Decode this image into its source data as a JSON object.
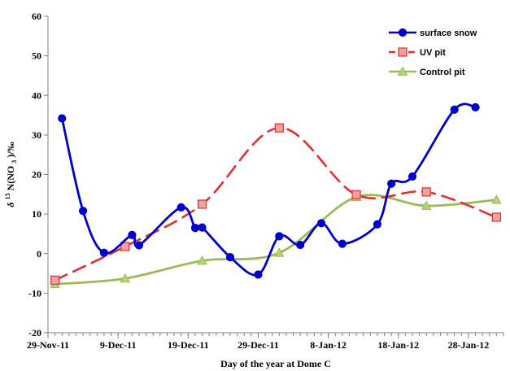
{
  "chart_data": {
    "type": "line",
    "xlabel": "Day of the year at Dome C",
    "ylabel_main": "δ",
    "ylabel_sup": "15",
    "ylabel_rest": "N(NO",
    "ylabel_sub": "3",
    "ylabel_end": ")/‰",
    "ylim": [
      -20,
      60
    ],
    "y_ticks": [
      "-20",
      "-10",
      "0",
      "10",
      "20",
      "30",
      "40",
      "50",
      "60"
    ],
    "xlim": [
      "2011-11-29",
      "2012-02-02"
    ],
    "x_tick_dates": [
      "2011-11-29",
      "2011-12-09",
      "2011-12-19",
      "2011-12-29",
      "2012-01-08",
      "2012-01-18",
      "2012-01-28"
    ],
    "x_tick_labels": [
      "29-Nov-11",
      "9-Dec-11",
      "19-Dec-11",
      "29-Dec-11",
      "8-Jan-12",
      "18-Jan-12",
      "28-Jan-12"
    ],
    "legend_position": "top-right",
    "grid": false,
    "series": [
      {
        "name": "surface snow",
        "color": "#0000cc",
        "marker": "circle",
        "dash": "solid",
        "points": [
          {
            "x": "2011-12-01",
            "y": 34.2
          },
          {
            "x": "2011-12-04",
            "y": 10.8
          },
          {
            "x": "2011-12-07",
            "y": 0.2
          },
          {
            "x": "2011-12-11",
            "y": 4.7
          },
          {
            "x": "2011-12-12",
            "y": 2.1
          },
          {
            "x": "2011-12-18",
            "y": 11.7
          },
          {
            "x": "2011-12-20",
            "y": 6.5
          },
          {
            "x": "2011-12-21",
            "y": 6.6
          },
          {
            "x": "2011-12-25",
            "y": -0.9
          },
          {
            "x": "2011-12-29",
            "y": -5.3
          },
          {
            "x": "2012-01-01",
            "y": 4.4
          },
          {
            "x": "2012-01-04",
            "y": 2.2
          },
          {
            "x": "2012-01-07",
            "y": 7.7
          },
          {
            "x": "2012-01-10",
            "y": 2.5
          },
          {
            "x": "2012-01-15",
            "y": 7.4
          },
          {
            "x": "2012-01-17",
            "y": 17.7
          },
          {
            "x": "2012-01-20",
            "y": 19.5
          },
          {
            "x": "2012-01-26",
            "y": 36.4
          },
          {
            "x": "2012-01-29",
            "y": 37.0
          }
        ]
      },
      {
        "name": "UV pit",
        "color": "#e03030",
        "marker": "square",
        "dash": "dashed",
        "points": [
          {
            "x": "2011-11-30",
            "y": -6.7
          },
          {
            "x": "2011-12-10",
            "y": 1.8
          },
          {
            "x": "2011-12-21",
            "y": 12.5
          },
          {
            "x": "2012-01-01",
            "y": 31.8
          },
          {
            "x": "2012-01-12",
            "y": 14.9
          },
          {
            "x": "2012-01-22",
            "y": 15.6
          },
          {
            "x": "2012-02-01",
            "y": 9.2
          }
        ]
      },
      {
        "name": "Control pit",
        "color": "#9bbb59",
        "marker": "triangle",
        "dash": "solid",
        "points": [
          {
            "x": "2011-11-30",
            "y": -7.7
          },
          {
            "x": "2011-12-10",
            "y": -6.3
          },
          {
            "x": "2011-12-21",
            "y": -1.8
          },
          {
            "x": "2012-01-01",
            "y": 0.2
          },
          {
            "x": "2012-01-12",
            "y": 14.3
          },
          {
            "x": "2012-01-22",
            "y": 12.1
          },
          {
            "x": "2012-02-01",
            "y": 13.6
          }
        ]
      }
    ]
  }
}
